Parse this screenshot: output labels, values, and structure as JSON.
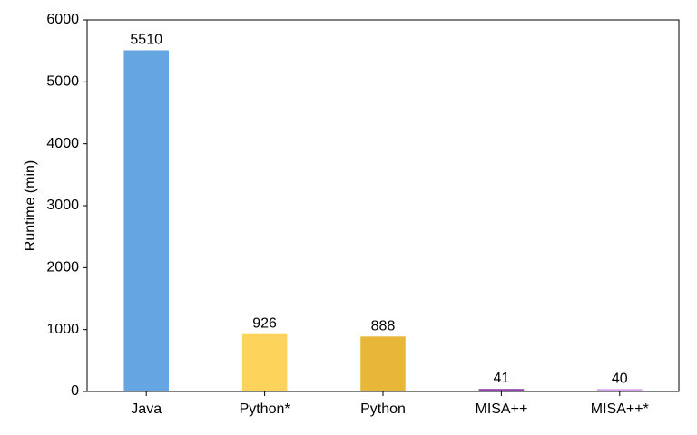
{
  "chart_data": {
    "type": "bar",
    "title": "",
    "xlabel": "",
    "ylabel": "Runtime (min)",
    "ylim": [
      0,
      6000
    ],
    "yticks": [
      0,
      1000,
      2000,
      3000,
      4000,
      5000,
      6000
    ],
    "grid": false,
    "categories": [
      "Java",
      "Python*",
      "Python",
      "MISA++",
      "MISA++*"
    ],
    "values": [
      5510,
      926,
      888,
      41,
      40
    ],
    "data_labels": [
      "5510",
      "926",
      "888",
      "41",
      "40"
    ],
    "colors": [
      "#64a5e2",
      "#fed35c",
      "#e8b73a",
      "#8e44ad",
      "#d6a2e8"
    ]
  }
}
